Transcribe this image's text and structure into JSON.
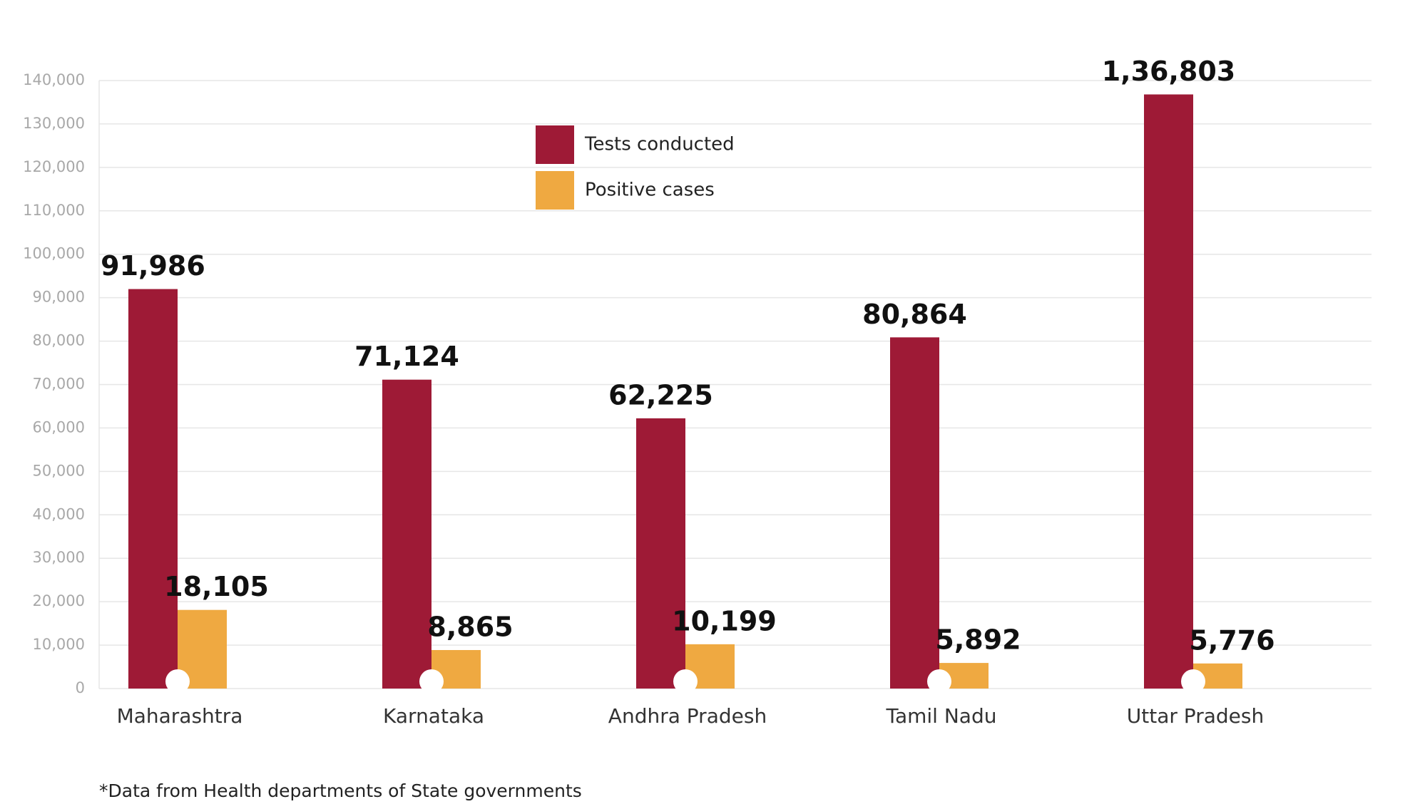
{
  "chart_data": {
    "type": "bar",
    "categories": [
      "Maharashtra",
      "Karnataka",
      "Andhra Pradesh",
      "Tamil Nadu",
      "Uttar Pradesh"
    ],
    "series": [
      {
        "name": "Tests conducted",
        "color": "#9e1a36",
        "values": [
          91986,
          71124,
          62225,
          80864,
          136803
        ],
        "value_labels": [
          "91,986",
          "71,124",
          "62,225",
          "80,864",
          "1,36,803"
        ]
      },
      {
        "name": "Positive cases",
        "color": "#efa941",
        "values": [
          18105,
          8865,
          10199,
          5892,
          5776
        ],
        "value_labels": [
          "18,105",
          "8,865",
          "10,199",
          "5,892",
          "5,776"
        ]
      }
    ],
    "ylim": [
      0,
      140000
    ],
    "yticks": [
      0,
      {
        "value": 10000,
        "label": "10,000"
      },
      {
        "value": 20000,
        "label": "20,000"
      },
      {
        "value": 30000,
        "label": "30,000"
      },
      {
        "value": 40000,
        "label": "40,000"
      },
      {
        "value": 50000,
        "label": "50,000"
      },
      {
        "value": 60000,
        "label": "60,000"
      },
      {
        "value": 70000,
        "label": "70,000"
      },
      {
        "value": 80000,
        "label": "80,000"
      },
      {
        "value": 90000,
        "label": "90,000"
      },
      {
        "value": 100000,
        "label": "100,000"
      },
      {
        "value": 110000,
        "label": "110,000"
      },
      {
        "value": 120000,
        "label": "120,000"
      },
      {
        "value": 130000,
        "label": "130,000"
      },
      {
        "value": 140000,
        "label": "140,000"
      }
    ],
    "grid": true,
    "legend": "top-center",
    "footnote": "*Data from Health departments of State governments"
  }
}
